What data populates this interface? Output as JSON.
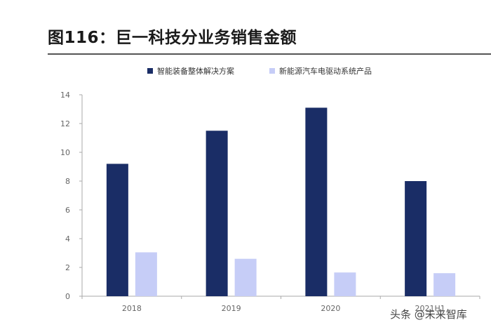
{
  "title": "图116：巨一科技分业务销售金额",
  "watermark": "头条 @未来智库",
  "colors": {
    "series1": "#1a2d66",
    "series2": "#c6cdf7",
    "axis": "#aaaaaa"
  },
  "chart_data": {
    "type": "bar",
    "title": "图116：巨一科技分业务销售金额",
    "categories": [
      "2018",
      "2019",
      "2020",
      "2021H1"
    ],
    "series": [
      {
        "name": "智能装备整体解决方案",
        "values": [
          9.2,
          11.5,
          13.1,
          8.0
        ]
      },
      {
        "name": "新能源汽车电驱动系统产品",
        "values": [
          3.05,
          2.6,
          1.65,
          1.6
        ]
      }
    ],
    "ylim": [
      0,
      14
    ],
    "yticks": [
      "0",
      "2",
      "4",
      "6",
      "8",
      "10",
      "12",
      "14"
    ],
    "xlabel": "",
    "ylabel": "",
    "legend_position": "top-center",
    "grid": false
  }
}
